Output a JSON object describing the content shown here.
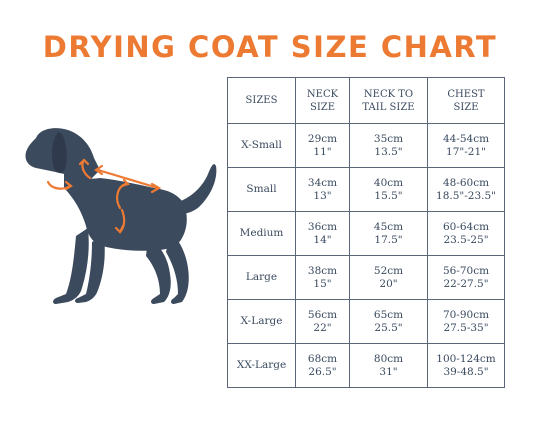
{
  "title": "DRYING COAT SIZE CHART",
  "colors": {
    "accent": "#ec7a33",
    "dog": "#3c4a5e",
    "border": "#5a6678"
  },
  "icons": {
    "dog": "dog-silhouette-icon"
  },
  "table": {
    "headers": [
      {
        "line1": "SIZES",
        "line2": ""
      },
      {
        "line1": "NECK",
        "line2": "SIZE"
      },
      {
        "line1": "NECK TO",
        "line2": "TAIL SIZE"
      },
      {
        "line1": "CHEST",
        "line2": "SIZE"
      }
    ],
    "rows": [
      {
        "size": "X-Small",
        "neck_cm": "29cm",
        "neck_in": "11\"",
        "tail_cm": "35cm",
        "tail_in": "13.5\"",
        "chest_cm": "44-54cm",
        "chest_in": "17\"-21\""
      },
      {
        "size": "Small",
        "neck_cm": "34cm",
        "neck_in": "13\"",
        "tail_cm": "40cm",
        "tail_in": "15.5\"",
        "chest_cm": "48-60cm",
        "chest_in": "18.5\"-23.5\""
      },
      {
        "size": "Medium",
        "neck_cm": "36cm",
        "neck_in": "14\"",
        "tail_cm": "45cm",
        "tail_in": "17.5\"",
        "chest_cm": "60-64cm",
        "chest_in": "23.5-25\""
      },
      {
        "size": "Large",
        "neck_cm": "38cm",
        "neck_in": "15\"",
        "tail_cm": "52cm",
        "tail_in": "20\"",
        "chest_cm": "56-70cm",
        "chest_in": "22-27.5\""
      },
      {
        "size": "X-Large",
        "neck_cm": "56cm",
        "neck_in": "22\"",
        "tail_cm": "65cm",
        "tail_in": "25.5\"",
        "chest_cm": "70-90cm",
        "chest_in": "27.5-35\""
      },
      {
        "size": "XX-Large",
        "neck_cm": "68cm",
        "neck_in": "26.5\"",
        "tail_cm": "80cm",
        "tail_in": "31\"",
        "chest_cm": "100-124cm",
        "chest_in": "39-48.5\""
      }
    ]
  }
}
